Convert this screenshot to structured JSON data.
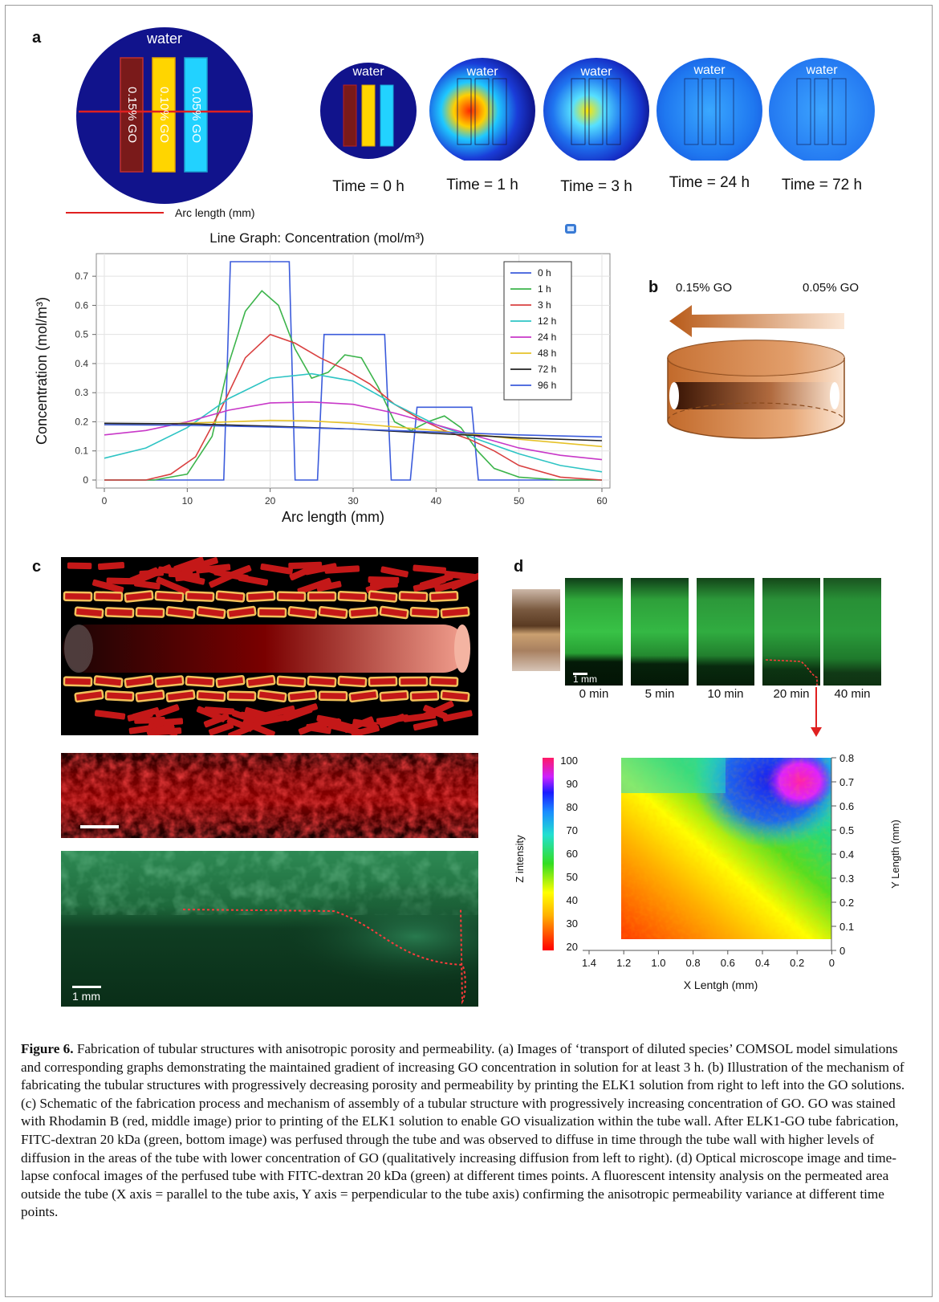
{
  "panels": {
    "a": "a",
    "b": "b",
    "c": "c",
    "d": "d"
  },
  "panel_a": {
    "main_circle": {
      "water": "water",
      "stripes": [
        "0.15% GO",
        "0.10% GO",
        "0.05% GO"
      ],
      "arc_label": "Arc length (mm)"
    },
    "snapshots": [
      {
        "water": "water",
        "time": "Time = 0 h"
      },
      {
        "water": "water",
        "time": "Time = 1 h"
      },
      {
        "water": "water",
        "time": "Time = 3 h"
      },
      {
        "water": "water",
        "time": "Time = 24 h"
      },
      {
        "water": "water",
        "time": "Time = 72 h"
      }
    ]
  },
  "chart_data": {
    "type": "line",
    "title": "Line Graph: Concentration (mol/m³)",
    "xlabel": "Arc length (mm)",
    "ylabel": "Concentration (mol/m³)",
    "xlim": [
      0,
      60
    ],
    "ylim": [
      0,
      0.75
    ],
    "xticks": [
      "0",
      "10",
      "20",
      "30",
      "40",
      "50",
      "60"
    ],
    "yticks": [
      "0",
      "0.1",
      "0.2",
      "0.3",
      "0.4",
      "0.5",
      "0.6",
      "0.7"
    ],
    "legend_position": "top-right",
    "series": [
      {
        "name": "0 h",
        "color": "#3b5bdb",
        "x": [
          0,
          14.4,
          15.2,
          22.3,
          23,
          25.7,
          26.5,
          33.8,
          34.6,
          36.9,
          37.7,
          44.3,
          45.1,
          60
        ],
        "y": [
          0,
          0,
          0.75,
          0.75,
          0,
          0,
          0.5,
          0.5,
          0,
          0,
          0.25,
          0.25,
          0,
          0
        ]
      },
      {
        "name": "1 h",
        "color": "#3cb44b",
        "x": [
          0,
          6,
          10,
          13,
          15,
          17,
          19,
          21,
          23,
          25,
          27,
          29,
          31,
          33,
          35,
          37,
          39,
          41,
          43,
          45,
          47,
          50,
          55,
          60
        ],
        "y": [
          0,
          0,
          0.02,
          0.15,
          0.4,
          0.58,
          0.65,
          0.6,
          0.45,
          0.35,
          0.37,
          0.43,
          0.42,
          0.32,
          0.2,
          0.17,
          0.2,
          0.22,
          0.18,
          0.1,
          0.04,
          0.01,
          0,
          0
        ]
      },
      {
        "name": "3 h",
        "color": "#d94040",
        "x": [
          0,
          5,
          8,
          11,
          14,
          17,
          20,
          23,
          26,
          29,
          32,
          35,
          38,
          41,
          44,
          47,
          50,
          55,
          60
        ],
        "y": [
          0,
          0,
          0.02,
          0.08,
          0.24,
          0.42,
          0.5,
          0.47,
          0.42,
          0.38,
          0.33,
          0.26,
          0.21,
          0.17,
          0.14,
          0.1,
          0.05,
          0.01,
          0
        ]
      },
      {
        "name": "12 h",
        "color": "#2ec4c4",
        "x": [
          0,
          5,
          10,
          15,
          20,
          25,
          30,
          35,
          40,
          45,
          50,
          55,
          60
        ],
        "y": [
          0.075,
          0.11,
          0.18,
          0.28,
          0.35,
          0.365,
          0.34,
          0.26,
          0.19,
          0.14,
          0.09,
          0.05,
          0.028
        ]
      },
      {
        "name": "24 h",
        "color": "#c838c8",
        "x": [
          0,
          5,
          10,
          15,
          20,
          25,
          30,
          35,
          40,
          45,
          50,
          55,
          60
        ],
        "y": [
          0.155,
          0.17,
          0.2,
          0.24,
          0.265,
          0.268,
          0.26,
          0.23,
          0.19,
          0.15,
          0.11,
          0.085,
          0.07
        ]
      },
      {
        "name": "48 h",
        "color": "#e6c229",
        "x": [
          0,
          10,
          20,
          25,
          30,
          40,
          50,
          60
        ],
        "y": [
          0.19,
          0.195,
          0.205,
          0.203,
          0.195,
          0.17,
          0.14,
          0.115
        ]
      },
      {
        "name": "72 h",
        "color": "#222222",
        "x": [
          0,
          10,
          20,
          30,
          40,
          50,
          60
        ],
        "y": [
          0.195,
          0.193,
          0.185,
          0.175,
          0.16,
          0.145,
          0.135
        ]
      },
      {
        "name": "96 h",
        "color": "#3b5bdb",
        "x": [
          0,
          10,
          20,
          30,
          40,
          50,
          60
        ],
        "y": [
          0.19,
          0.188,
          0.182,
          0.175,
          0.165,
          0.155,
          0.148
        ]
      }
    ]
  },
  "panel_b": {
    "left_label": "0.15% GO",
    "right_label": "0.05% GO"
  },
  "panel_c": {
    "scale_bar": "1 mm"
  },
  "panel_d": {
    "scale_bar": "1 mm",
    "times": [
      "0 min",
      "5 min",
      "10 min",
      "20 min",
      "40 min"
    ],
    "heatmap": {
      "type": "heatmap",
      "colorbar_ticks": [
        "100",
        "90",
        "80",
        "70",
        "60",
        "50",
        "40",
        "30",
        "20"
      ],
      "colorbar_label": "Z intensity",
      "yticks": [
        "0.8",
        "0.7",
        "0.6",
        "0.5",
        "0.4",
        "0.3",
        "0.2",
        "0.1",
        "0"
      ],
      "ylabel": "Y Length (mm)",
      "xticks": [
        "1.4",
        "1.2",
        "1.0",
        "0.8",
        "0.6",
        "0.4",
        "0.2",
        "0"
      ],
      "xlabel": "X Lentgh (mm)"
    }
  },
  "caption": {
    "label": "Figure 6.",
    "text": " Fabrication of tubular structures with anisotropic porosity and permeability. (a) Images of ‘transport of diluted species’ COMSOL model simulations and corresponding graphs demonstrating the maintained gradient of increasing GO concentration in solution for at least 3 h. (b) Illustration of the mechanism of fabricating the tubular structures with progressively decreasing porosity and permeability by printing the ELK1 solution from right to left into the GO solutions. (c) Schematic of the fabrication process and mechanism of assembly of a tubular structure with progressively increasing concentration of GO. GO was stained with Rhodamin B (red, middle image) prior to printing of the ELK1 solution to enable GO visualization within the tube wall. After ELK1-GO tube fabrication, FITC-dextran 20 kDa (green, bottom image) was perfused through the tube and was observed to diffuse in time through the tube wall with higher levels of diffusion in the areas of the tube with lower concentration of GO (qualitatively increasing diffusion from left to right). (d) Optical microscope image and time-lapse confocal images of the perfused tube with FITC-dextran 20 kDa (green) at different times points. A fluorescent intensity analysis on the permeated area outside the tube (X axis = parallel to the tube axis, Y axis = perpendicular to the tube axis) confirming the anisotropic permeability variance at different time points."
  }
}
